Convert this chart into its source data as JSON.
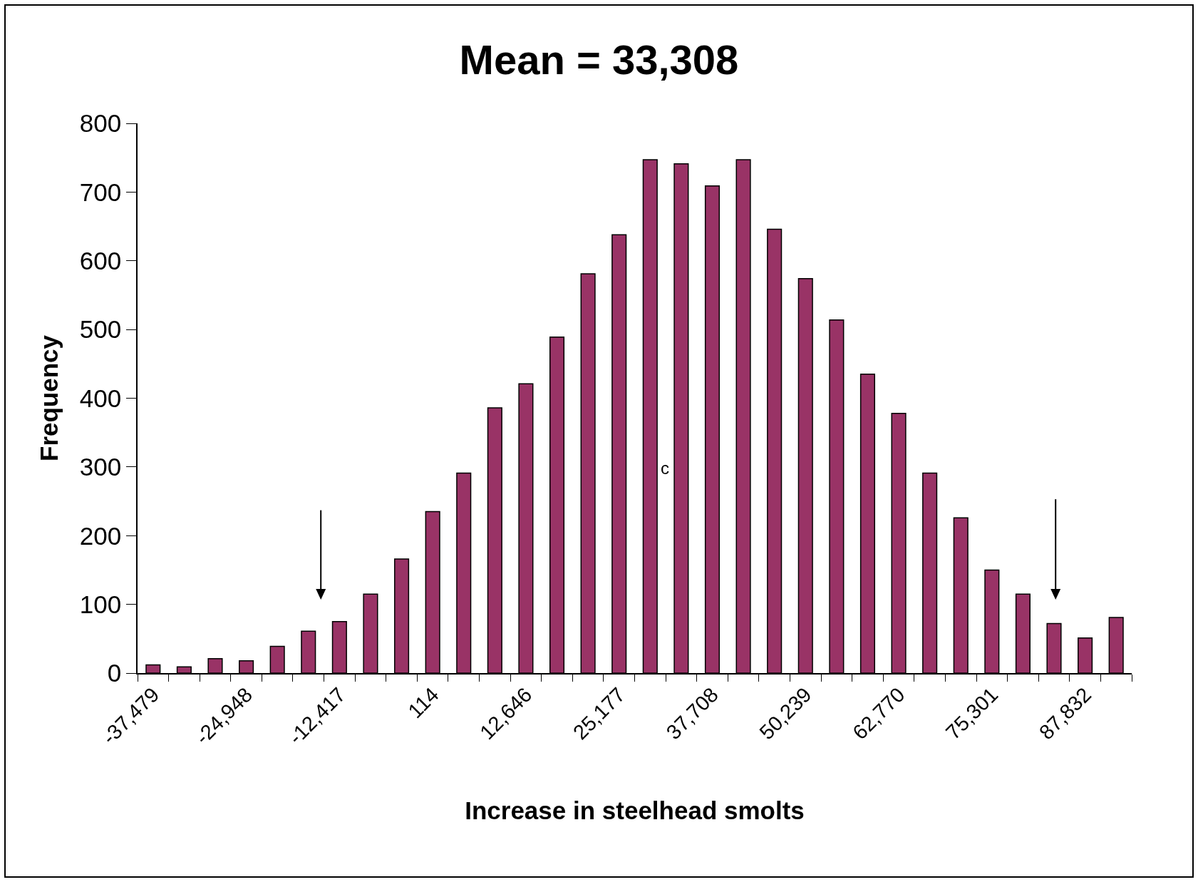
{
  "chart_data": {
    "type": "bar",
    "title": "Mean = 33,308",
    "xlabel": "Increase in steelhead smolts",
    "ylabel": "Frequency",
    "categories": [
      "-37,479",
      null,
      null,
      "-24,948",
      null,
      null,
      "-12,417",
      null,
      null,
      "114",
      null,
      null,
      "12,646",
      null,
      null,
      "25,177",
      null,
      null,
      "37,708",
      null,
      null,
      "50,239",
      null,
      null,
      "62,770",
      null,
      null,
      "75,301",
      null,
      null,
      "87,832",
      null
    ],
    "values": [
      12,
      9,
      21,
      18,
      39,
      61,
      75,
      115,
      166,
      235,
      291,
      386,
      421,
      489,
      581,
      638,
      747,
      741,
      709,
      747,
      646,
      574,
      514,
      435,
      378,
      291,
      226,
      150,
      115,
      72,
      51,
      81
    ],
    "color": "#993366",
    "ylim": [
      0,
      800
    ],
    "yticks": [
      0,
      100,
      200,
      300,
      400,
      500,
      600,
      700,
      800
    ],
    "grid": false,
    "annotations": [
      "c"
    ]
  }
}
